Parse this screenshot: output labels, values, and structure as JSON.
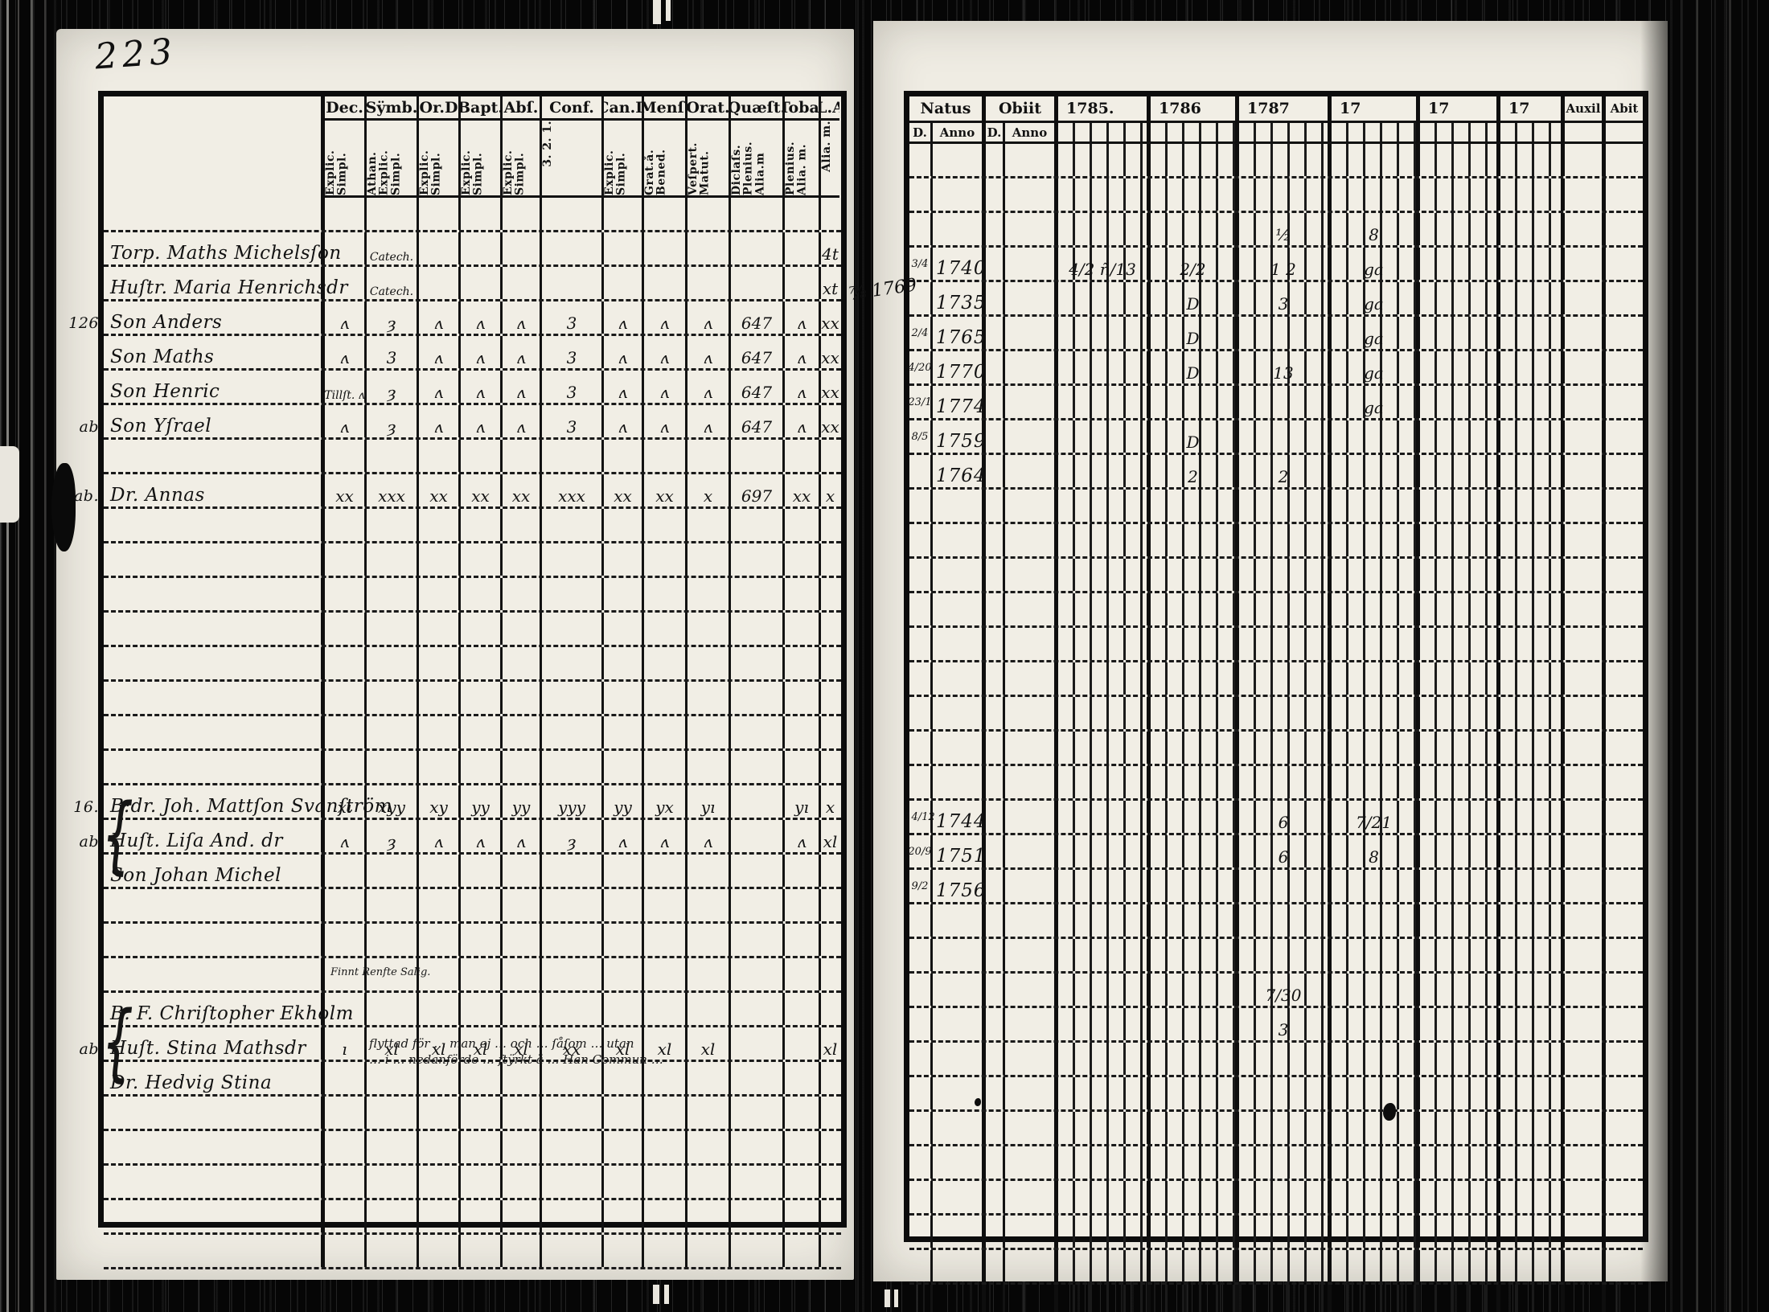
{
  "page_number": "223",
  "gutter_note": "⅞ 1769",
  "left_table": {
    "columns": [
      {
        "label": "Dec.",
        "sub": "Explic. Simpl."
      },
      {
        "label": "Sÿmb.",
        "sub": "Athan. Explic. Simpl."
      },
      {
        "label": "Or.D",
        "sub": "Explic. Simpl."
      },
      {
        "label": "Bapt.",
        "sub": "Explic. Simpl."
      },
      {
        "label": "Abſ.",
        "sub": "Explic. Simpl."
      },
      {
        "label": "Conf.",
        "sub": "3. 2. 1."
      },
      {
        "label": "Can.D",
        "sub": "Explic. Simpl."
      },
      {
        "label": "Menſ.",
        "sub": "Grat.å. Bened."
      },
      {
        "label": "Orat.",
        "sub": "Veſpert. Matut."
      },
      {
        "label": "Quæſt.",
        "sub": "Diclaſs. Plenius. Alia.m"
      },
      {
        "label": "Toba.",
        "sub": "Plenius. Alia. m."
      },
      {
        "label": "L.A",
        "sub": "Alia. m."
      }
    ],
    "ekholm_note": "Finnt  Renfte  Salig.",
    "hedvig_note_line1": "flyttad för … man ej … och … ſåſom … utan",
    "hedvig_note_line2": "… i … nedanförde … ſtÿrkt ä … Han Commun …",
    "rows": [
      {},
      {
        "name": "Torp. Maths Michelsſon",
        "cells": [
          "",
          "Catech.",
          "",
          "",
          "",
          "",
          "",
          "",
          "",
          "",
          "",
          "4t"
        ]
      },
      {
        "name": "Huſtr. Maria Henrichsdr",
        "cells": [
          "",
          "Catech.",
          "",
          "",
          "",
          "",
          "",
          "",
          "",
          "",
          "",
          "xt"
        ]
      },
      {
        "margin": "126",
        "name": "Son Anders",
        "cells": [
          "ʌ",
          "ȝ",
          "ʌ",
          "ʌ",
          "ʌ",
          "3",
          "ʌ",
          "ʌ",
          "ʌ",
          "647",
          "ʌ",
          "xx"
        ]
      },
      {
        "name": "Son Maths",
        "cells": [
          "ʌ",
          "3",
          "ʌ",
          "ʌ",
          "ʌ",
          "3",
          "ʌ",
          "ʌ",
          "ʌ",
          "647",
          "ʌ",
          "xx"
        ]
      },
      {
        "name": "Son Henric",
        "cells": [
          "Tillſt. ʌ",
          "ȝ",
          "ʌ",
          "ʌ",
          "ʌ",
          "3",
          "ʌ",
          "ʌ",
          "ʌ",
          "647",
          "ʌ",
          "xx"
        ]
      },
      {
        "margin": "ab",
        "name": "Son Yſrael",
        "cells": [
          "ʌ",
          "ȝ",
          "ʌ",
          "ʌ",
          "ʌ",
          "3",
          "ʌ",
          "ʌ",
          "ʌ",
          "647",
          "ʌ",
          "xx"
        ]
      },
      {},
      {
        "margin": "ab.",
        "name": "Dr. Annas",
        "cells": [
          "xx",
          "xxx",
          "xx",
          "xx",
          "xx",
          "xxx",
          "xx",
          "xx",
          "x",
          "697",
          "xx",
          "x"
        ]
      },
      {},
      {},
      {},
      {},
      {},
      {},
      {},
      {},
      {
        "margin": "16.",
        "name": "B:dr. Joh. Mattſon Svanſtröm",
        "cells": [
          "xı",
          "xyy",
          "xy",
          "yy",
          "yy",
          "yyy",
          "yy",
          "yx",
          "yı",
          "",
          "yı",
          "x"
        ]
      },
      {
        "margin": "ab",
        "brace": true,
        "name": "Huſt. Liſa And. dr",
        "cells": [
          "ʌ",
          "ȝ",
          "ʌ",
          "ʌ",
          "ʌ",
          "ȝ",
          "ʌ",
          "ʌ",
          "ʌ",
          "",
          "ʌ",
          "xl"
        ]
      },
      {
        "name": "Son Johan Michel",
        "cells": []
      },
      {},
      {},
      {},
      {
        "name": "B. F. Chriſtopher Ekholm",
        "cells": []
      },
      {
        "margin": "ab",
        "brace": true,
        "name": "Huſt. Stina Mathsdr",
        "cells": [
          "ı",
          "xl",
          "xl",
          "xl",
          "xl",
          "xx",
          "xl",
          "xl",
          "xl",
          "",
          "",
          "xl"
        ]
      },
      {
        "name": "Dr. Hedvig Stina",
        "cells": []
      },
      {},
      {},
      {},
      {},
      {}
    ]
  },
  "right_table": {
    "headers": {
      "natus": "Natus",
      "obiit": "Obiit",
      "d1": "D.",
      "anno1": "Anno",
      "d2": "D.",
      "anno2": "Anno",
      "years": [
        "1785.",
        "1786",
        "1787",
        "17",
        "17",
        "17"
      ],
      "auxil": "Auxil",
      "abit": "Abit"
    },
    "rows": [
      {},
      {},
      {
        "y": [
          "",
          "",
          "½",
          "8",
          "",
          ""
        ]
      },
      {
        "nd": "3/4",
        "na": "1740",
        "y": [
          "4/2  ñ/13",
          "2/2",
          "1 2",
          "ga",
          "",
          ""
        ]
      },
      {
        "na": "1735",
        "y": [
          "",
          "D",
          "3",
          "ga",
          "",
          ""
        ]
      },
      {
        "nd": "2/4",
        "na": "1765",
        "y": [
          "",
          "D",
          "",
          "ga",
          "",
          ""
        ]
      },
      {
        "nd": "4/20",
        "na": "1770",
        "y": [
          "",
          "D",
          "13",
          "ga",
          "",
          ""
        ]
      },
      {
        "nd": "23/1",
        "na": "1774",
        "y": [
          "",
          "",
          "",
          "ga",
          "",
          ""
        ]
      },
      {
        "nd": "8/5",
        "na": "1759",
        "y": [
          "",
          "D",
          "",
          "",
          "",
          ""
        ]
      },
      {
        "na": "1764",
        "y": [
          "",
          "2",
          "2",
          "",
          "",
          ""
        ]
      },
      {},
      {},
      {},
      {},
      {},
      {},
      {},
      {},
      {},
      {
        "nd": "14/12",
        "na": "1744",
        "y": [
          "",
          "",
          "6",
          "7/21",
          "",
          ""
        ]
      },
      {
        "nd": "20/9",
        "na": "1751",
        "y": [
          "",
          "",
          "6",
          "8",
          "",
          ""
        ]
      },
      {
        "nd": "9/2",
        "na": "1756",
        "y": []
      },
      {},
      {},
      {
        "y": [
          "",
          "",
          "7/30",
          "",
          "",
          ""
        ]
      },
      {
        "y": [
          "",
          "",
          "3",
          "",
          "",
          ""
        ]
      },
      {},
      {},
      {},
      {},
      {},
      {},
      {},
      {}
    ]
  }
}
